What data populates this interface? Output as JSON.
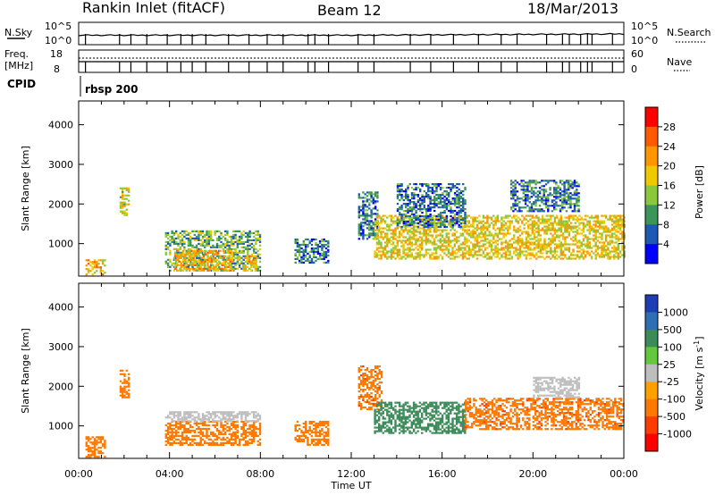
{
  "header": {
    "station": "Rankin Inlet (fitACF)",
    "beam": "Beam 12",
    "date": "18/Mar/2013"
  },
  "panels": {
    "nsky_label": "N.Sky",
    "nsky_ticks": [
      "10^5",
      "10^0"
    ],
    "nsearch_label": "N.Search",
    "nsearch_ticks": [
      "10^5",
      "10^0"
    ],
    "freq_label_1": "Freq.",
    "freq_label_2": "[MHz]",
    "freq_ticks": [
      "18",
      "8"
    ],
    "nave_label": "Nave",
    "nave_ticks": [
      "60",
      "0"
    ],
    "cpid_label": "CPID",
    "cpid_value": "rbsp 200"
  },
  "axes": {
    "ylabel": "Slant Range [km]",
    "yticks": [
      "4000",
      "3000",
      "2000",
      "1000"
    ],
    "xlabel": "Time UT",
    "xticks": [
      "00:00",
      "04:00",
      "08:00",
      "12:00",
      "16:00",
      "20:00",
      "00:00"
    ]
  },
  "colorbars": {
    "power": {
      "label": "Power [dB]",
      "ticks": [
        "28",
        "24",
        "20",
        "16",
        "12",
        "8",
        "4"
      ],
      "colors": [
        "#ff0000",
        "#ff5a00",
        "#ff9600",
        "#f0c800",
        "#8cc83c",
        "#3c965a",
        "#1e5ab4",
        "#0000ff"
      ]
    },
    "velocity": {
      "label": "Velocity [m s",
      "label_sup": "-1",
      "label_end": "]",
      "ticks": [
        "1000",
        "500",
        "100",
        "25",
        "-25",
        "-100",
        "-500",
        "-1000"
      ],
      "colors": [
        "#1e3cb4",
        "#2d6eb4",
        "#3c8c5a",
        "#64c83c",
        "#bebebe",
        "#ffa000",
        "#ff7800",
        "#ff3c00",
        "#ff0000"
      ]
    }
  },
  "chart_data": [
    {
      "type": "heatmap",
      "name": "power",
      "xlabel": "Time UT",
      "ylabel": "Slant Range [km]",
      "xlim": [
        "00:00",
        "24:00"
      ],
      "ylim": [
        180,
        4600
      ],
      "zlabel": "Power [dB]",
      "zlim": [
        0,
        32
      ],
      "regions": [
        {
          "t": [
            0.3,
            1.2
          ],
          "r": [
            200,
            600
          ],
          "z": 22
        },
        {
          "t": [
            1.8,
            2.2
          ],
          "r": [
            1700,
            2400
          ],
          "z": 18
        },
        {
          "t": [
            3.8,
            8.0
          ],
          "r": [
            300,
            1300
          ],
          "z": 14
        },
        {
          "t": [
            4.2,
            6.8
          ],
          "r": [
            300,
            800
          ],
          "z": 22
        },
        {
          "t": [
            7.2,
            7.8
          ],
          "r": [
            300,
            700
          ],
          "z": 22
        },
        {
          "t": [
            9.5,
            11.0
          ],
          "r": [
            500,
            1100
          ],
          "z": 10
        },
        {
          "t": [
            12.3,
            13.2
          ],
          "r": [
            1100,
            2300
          ],
          "z": 10
        },
        {
          "t": [
            13.0,
            24.0
          ],
          "r": [
            600,
            1700
          ],
          "z": 20
        },
        {
          "t": [
            14.0,
            17.0
          ],
          "r": [
            1400,
            2500
          ],
          "z": 10
        },
        {
          "t": [
            19.0,
            22.0
          ],
          "r": [
            1800,
            2600
          ],
          "z": 10
        }
      ]
    },
    {
      "type": "heatmap",
      "name": "velocity",
      "xlabel": "Time UT",
      "ylabel": "Slant Range [km]",
      "xlim": [
        "00:00",
        "24:00"
      ],
      "ylim": [
        180,
        4600
      ],
      "zlabel": "Velocity [m s-1]",
      "zlim": [
        -1000,
        1000
      ],
      "regions": [
        {
          "t": [
            0.3,
            1.2
          ],
          "r": [
            200,
            700
          ],
          "z": -150
        },
        {
          "t": [
            1.8,
            2.2
          ],
          "r": [
            1700,
            2400
          ],
          "z": -200
        },
        {
          "t": [
            3.8,
            8.0
          ],
          "r": [
            500,
            1100
          ],
          "z": -300
        },
        {
          "t": [
            3.8,
            8.0
          ],
          "r": [
            1100,
            1350
          ],
          "z": 0
        },
        {
          "t": [
            9.5,
            11.0
          ],
          "r": [
            500,
            1100
          ],
          "z": -300
        },
        {
          "t": [
            12.3,
            13.3
          ],
          "r": [
            1400,
            2500
          ],
          "z": -400
        },
        {
          "t": [
            13.0,
            17.0
          ],
          "r": [
            800,
            1600
          ],
          "z": 300
        },
        {
          "t": [
            17.0,
            24.0
          ],
          "r": [
            900,
            1700
          ],
          "z": -400
        },
        {
          "t": [
            20.0,
            22.0
          ],
          "r": [
            1700,
            2200
          ],
          "z": 0
        }
      ]
    }
  ]
}
